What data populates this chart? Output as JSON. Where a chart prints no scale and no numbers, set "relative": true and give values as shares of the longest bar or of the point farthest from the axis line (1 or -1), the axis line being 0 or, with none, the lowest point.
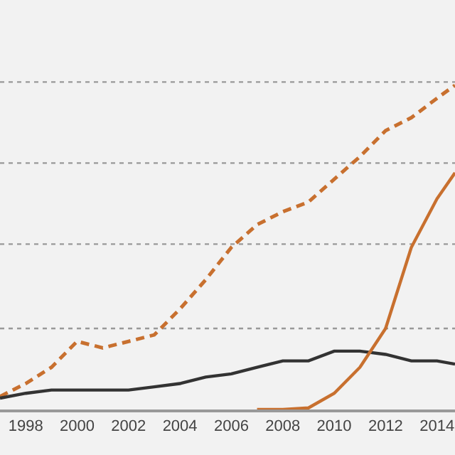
{
  "chart_data": {
    "type": "line",
    "relative": true,
    "xlim": [
      1997,
      2014.7
    ],
    "xticks": [
      1998,
      2000,
      2002,
      2004,
      2006,
      2008,
      2010,
      2012,
      2014
    ],
    "tick_labels": "x",
    "marker": "none",
    "ref_lines": [
      {
        "axis": "y",
        "value": 0.25,
        "color": "#999999",
        "line_style": "dotted"
      },
      {
        "axis": "y",
        "value": 0.51,
        "color": "#999999",
        "line_style": "dotted"
      },
      {
        "axis": "y",
        "value": 0.76,
        "color": "#999999",
        "line_style": "dotted"
      },
      {
        "axis": "y",
        "value": 1.01,
        "color": "#999999",
        "line_style": "dotted"
      }
    ],
    "series": [
      {
        "color": "#c8702f",
        "line_style": "dashed",
        "x": [
          1997,
          1998,
          1999,
          2000,
          2001,
          2002,
          2003,
          2004,
          2005,
          2006,
          2007,
          2008,
          2009,
          2010,
          2011,
          2012,
          2013,
          2014,
          2014.7
        ],
        "values": [
          0.04,
          0.08,
          0.13,
          0.21,
          0.19,
          0.21,
          0.23,
          0.31,
          0.4,
          0.5,
          0.57,
          0.61,
          0.64,
          0.71,
          0.78,
          0.86,
          0.9,
          0.96,
          1
        ]
      },
      {
        "color": "#333333",
        "line_style": "solid",
        "x": [
          1997,
          1998,
          1999,
          2000,
          2001,
          2002,
          2003,
          2004,
          2005,
          2006,
          2007,
          2008,
          2009,
          2010,
          2011,
          2012,
          2013,
          2014,
          2014.7
        ],
        "values": [
          0.035,
          0.05,
          0.06,
          0.06,
          0.06,
          0.06,
          0.07,
          0.08,
          0.1,
          0.11,
          0.13,
          0.15,
          0.15,
          0.18,
          0.18,
          0.17,
          0.15,
          0.15,
          0.14
        ]
      },
      {
        "color": "#c8702f",
        "line_style": "solid",
        "x": [
          2007,
          2008,
          2009,
          2010,
          2011,
          2012,
          2013,
          2014,
          2014.7
        ],
        "values": [
          0,
          0,
          0.005,
          0.05,
          0.13,
          0.25,
          0.5,
          0.65,
          0.73
        ]
      }
    ]
  }
}
